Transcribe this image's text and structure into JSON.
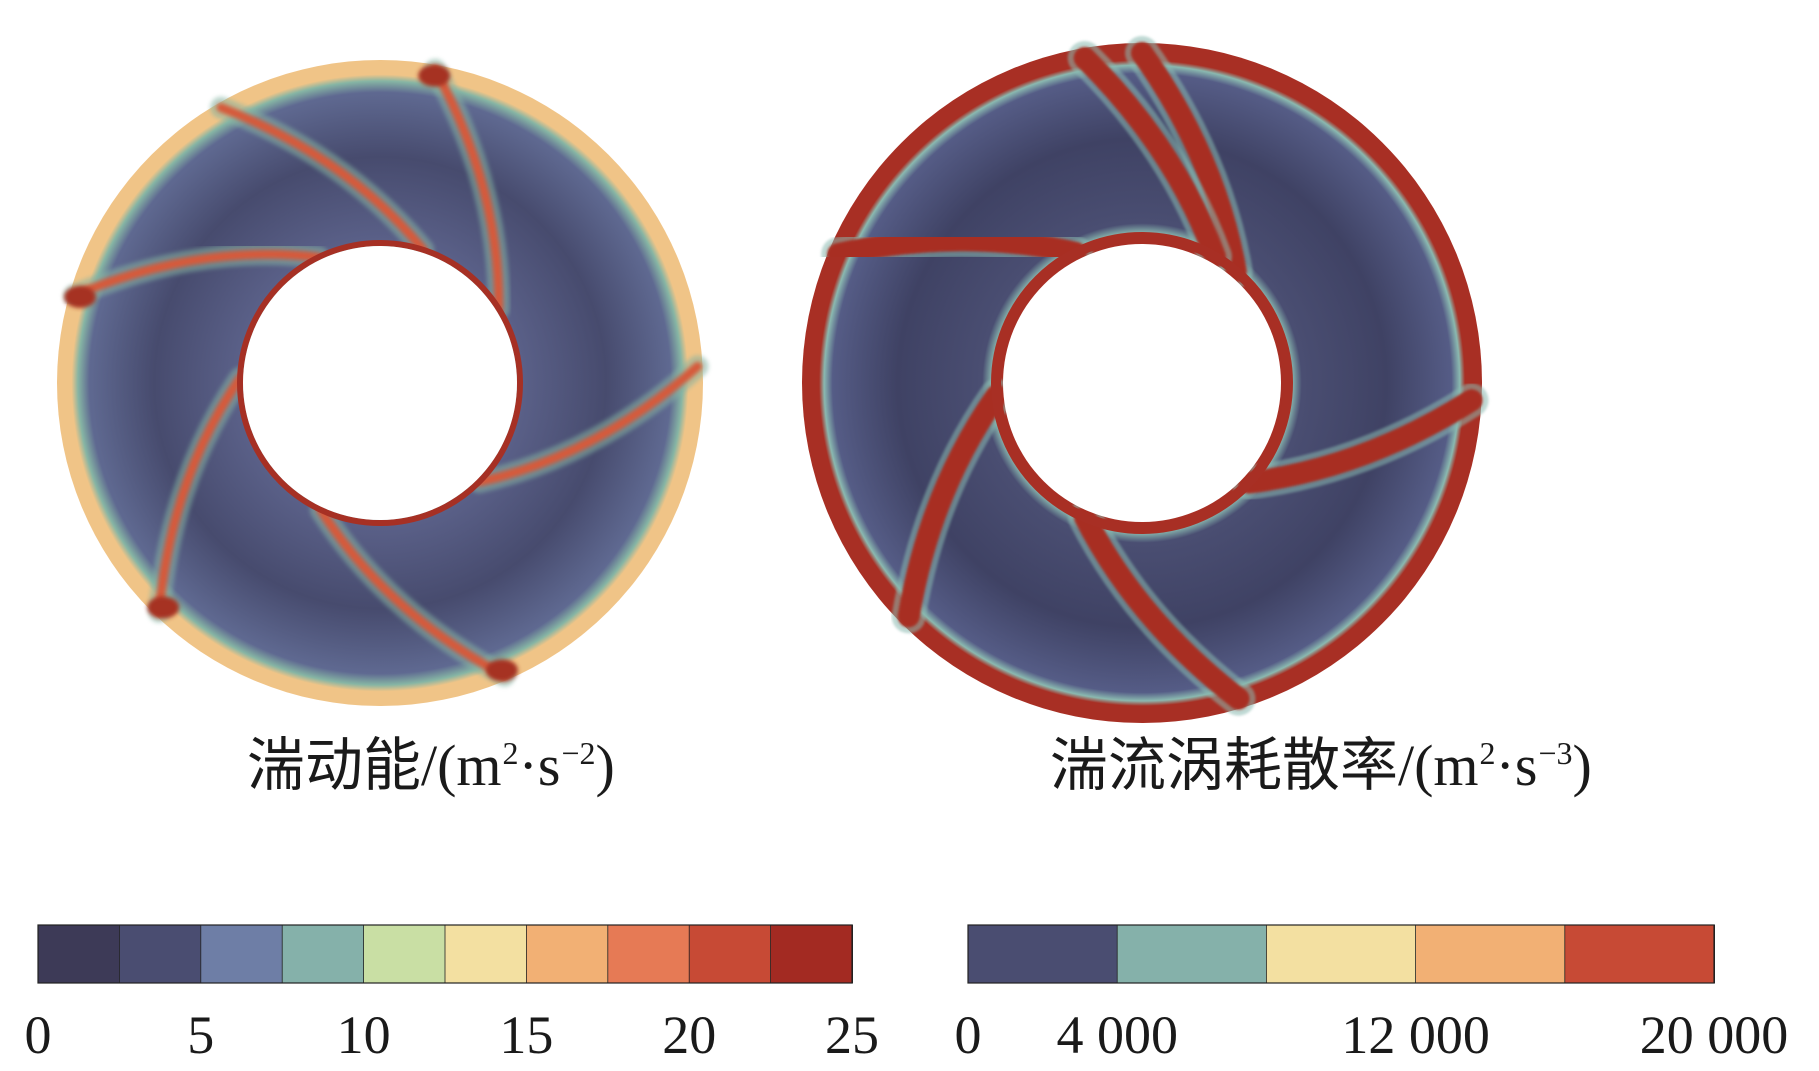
{
  "colormap": [
    "#3d3a57",
    "#4a4d71",
    "#6e7ea6",
    "#85b1aa",
    "#c9dfa4",
    "#f3e0a1",
    "#f2b074",
    "#e67a55",
    "#c74a35",
    "#a32a22"
  ],
  "panels": [
    {
      "id": "tke",
      "colorbar": {
        "title_main": "湍动能/(m",
        "title_sup1": "2",
        "title_mid": "·s",
        "title_sup2": "−2",
        "title_end": ")",
        "min": 0,
        "max": 25,
        "levels": 10,
        "ticks": [
          {
            "label": "0",
            "value": 0
          },
          {
            "label": "5",
            "value": 5
          },
          {
            "label": "10",
            "value": 10
          },
          {
            "label": "15",
            "value": 15
          },
          {
            "label": "20",
            "value": 20
          },
          {
            "label": "25",
            "value": 25
          }
        ]
      },
      "field": {
        "background_color": "#5a6088",
        "inner_color": "#474b6e",
        "outer_wall_color": "#f0c487",
        "inner_wall_color": "#a63024",
        "wake_color": "#d65a3a",
        "wake_glow": "#86b5a4",
        "blade_angles_deg": [
          -32,
          45,
          115,
          182,
          244,
          288
        ],
        "hotspot_angles_deg": [
          -32,
          115,
          182,
          244
        ]
      }
    },
    {
      "id": "epsilon",
      "colorbar": {
        "title_main": "湍流涡耗散率/(m",
        "title_sup1": "2",
        "title_mid": "·s",
        "title_sup2": "−3",
        "title_end": ")",
        "min": 0,
        "max": 20000,
        "levels": 5,
        "ticks": [
          {
            "label": "0",
            "value": 0
          },
          {
            "label": "4 000",
            "value": 4000
          },
          {
            "label": "12 000",
            "value": 12000
          },
          {
            "label": "20 000",
            "value": 20000
          }
        ]
      },
      "field": {
        "background_color": "#4a4e72",
        "inner_color": "#3f4264",
        "outer_wall_color": "#a82f24",
        "inner_wall_color": "#a82f24",
        "wake_color": "#a82f24",
        "wake_glow": "#8ab9b0",
        "blade_angles_deg": [
          -50,
          43,
          113,
          175,
          243,
          300
        ],
        "hotspot_angles_deg": []
      }
    }
  ]
}
